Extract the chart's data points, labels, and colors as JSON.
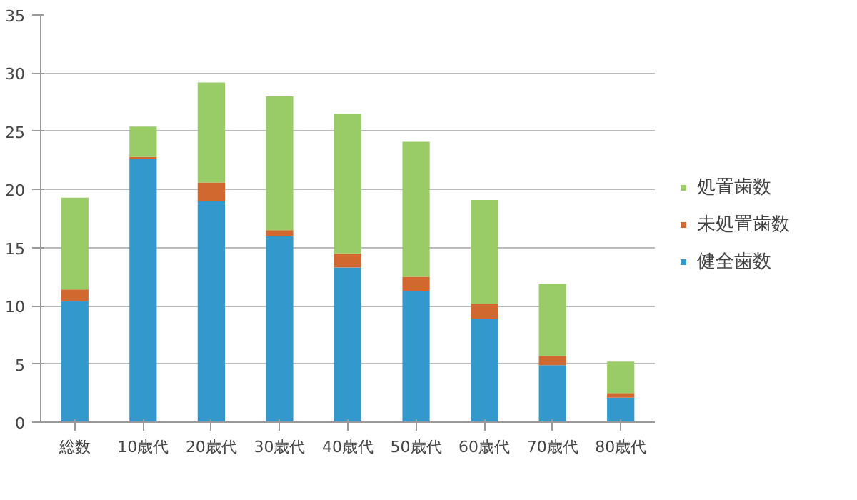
{
  "chart_data": {
    "type": "bar",
    "stacked": true,
    "categories": [
      "総数",
      "10歳代",
      "20歳代",
      "30歳代",
      "40歳代",
      "50歳代",
      "60歳代",
      "70歳代",
      "80歳代"
    ],
    "series": [
      {
        "name": "健全歯数",
        "color": "#3399cc",
        "values": [
          10.4,
          22.6,
          19.0,
          16.0,
          13.3,
          11.3,
          8.9,
          4.9,
          2.1
        ]
      },
      {
        "name": "未処置歯数",
        "color": "#d06830",
        "values": [
          1.0,
          0.2,
          1.6,
          0.5,
          1.2,
          1.2,
          1.3,
          0.8,
          0.4
        ]
      },
      {
        "name": "処置歯数",
        "color": "#99cc66",
        "values": [
          7.9,
          2.6,
          8.6,
          11.5,
          12.0,
          11.6,
          8.9,
          6.2,
          2.7
        ]
      }
    ],
    "ylim": [
      0,
      35
    ],
    "yticks": [
      0,
      5,
      10,
      15,
      20,
      25,
      30,
      35
    ],
    "grid": "y",
    "legend": "right"
  }
}
